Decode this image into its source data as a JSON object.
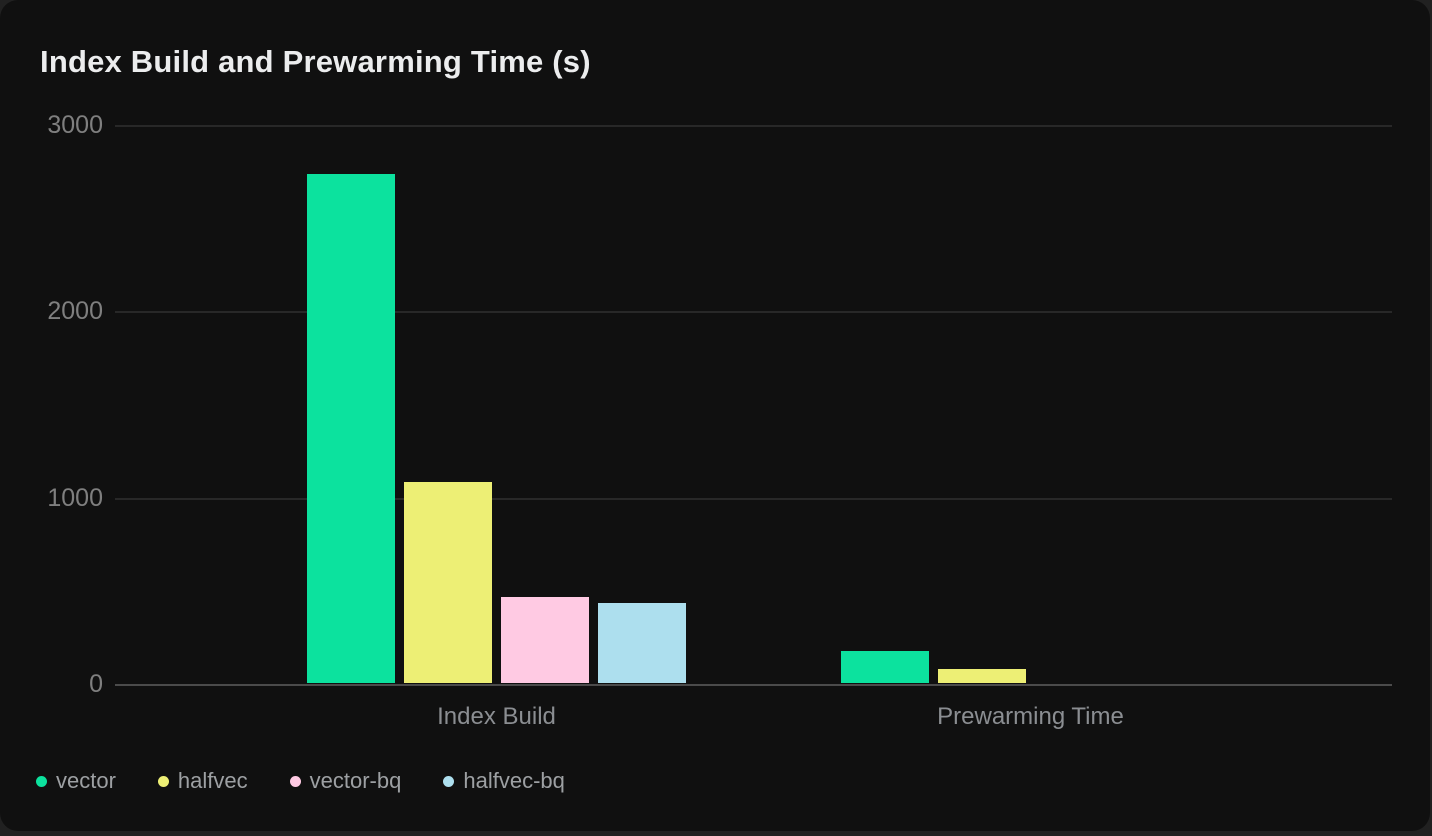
{
  "page": {
    "background_color": "#212121"
  },
  "card": {
    "background_color": "#101010"
  },
  "chart_data": {
    "type": "bar",
    "title": "Index Build and Prewarming Time (s)",
    "categories": [
      "Index Build",
      "Prewarming Time"
    ],
    "series": [
      {
        "name": "vector",
        "color": "#0ce29e",
        "values": [
          2730,
          170
        ]
      },
      {
        "name": "halfvec",
        "color": "#edef75",
        "values": [
          1080,
          75
        ]
      },
      {
        "name": "vector-bq",
        "color": "#ffcae3",
        "values": [
          460,
          0
        ]
      },
      {
        "name": "halfvec-bq",
        "color": "#addfee",
        "values": [
          430,
          0
        ]
      }
    ],
    "xlabel": "",
    "ylabel": "",
    "ylim": [
      0,
      3000
    ],
    "yticks": [
      0,
      1000,
      2000,
      3000
    ],
    "grid": true,
    "legend_position": "bottom-left",
    "axis_line_color": "#4b4b4b",
    "gridline_color": "#282828",
    "tick_label_color": "#7f7f7f",
    "category_label_color": "#8b8e92",
    "legend_text_color": "#9da0a3",
    "title_color": "#ecedee"
  }
}
